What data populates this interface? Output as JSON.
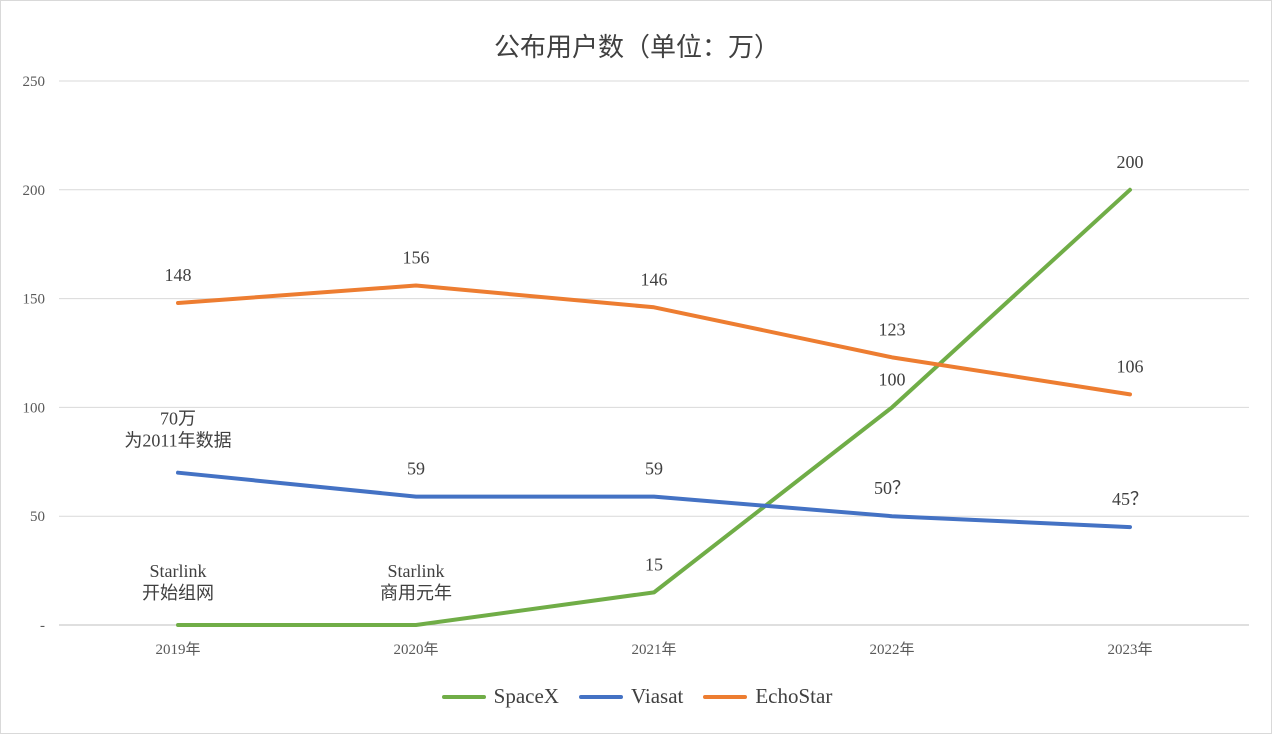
{
  "chart_data": {
    "type": "line",
    "title": "公布用户数（单位：万）",
    "categories": [
      "2019年",
      "2020年",
      "2021年",
      "2022年",
      "2023年"
    ],
    "ylim": [
      0,
      250
    ],
    "yticks": [
      {
        "value": 0,
        "label": "-"
      },
      {
        "value": 50,
        "label": "50"
      },
      {
        "value": 100,
        "label": "100"
      },
      {
        "value": 150,
        "label": "150"
      },
      {
        "value": 200,
        "label": "200"
      },
      {
        "value": 250,
        "label": "250"
      }
    ],
    "grid": true,
    "legend_position": "bottom",
    "series": [
      {
        "name": "SpaceX",
        "color": "#70ad47",
        "values": [
          0,
          0,
          15,
          100,
          200
        ],
        "labels": [
          "",
          "",
          "15",
          "100",
          "200"
        ]
      },
      {
        "name": "Viasat",
        "color": "#4472c4",
        "values": [
          70,
          59,
          59,
          50,
          45
        ],
        "labels": [
          "",
          "59",
          "59",
          "50？",
          "45？"
        ]
      },
      {
        "name": "EchoStar",
        "color": "#ed7d31",
        "values": [
          148,
          156,
          146,
          123,
          106
        ],
        "labels": [
          "148",
          "156",
          "146",
          "123",
          "106"
        ]
      }
    ],
    "annotations": [
      {
        "category_index": 0,
        "value": 70,
        "lines": [
          "70万",
          "为2011年数据"
        ]
      },
      {
        "category_index": 0,
        "value": 0,
        "lines": [
          "Starlink",
          "开始组网"
        ]
      },
      {
        "category_index": 1,
        "value": 0,
        "lines": [
          "Starlink",
          "商用元年"
        ]
      }
    ]
  }
}
